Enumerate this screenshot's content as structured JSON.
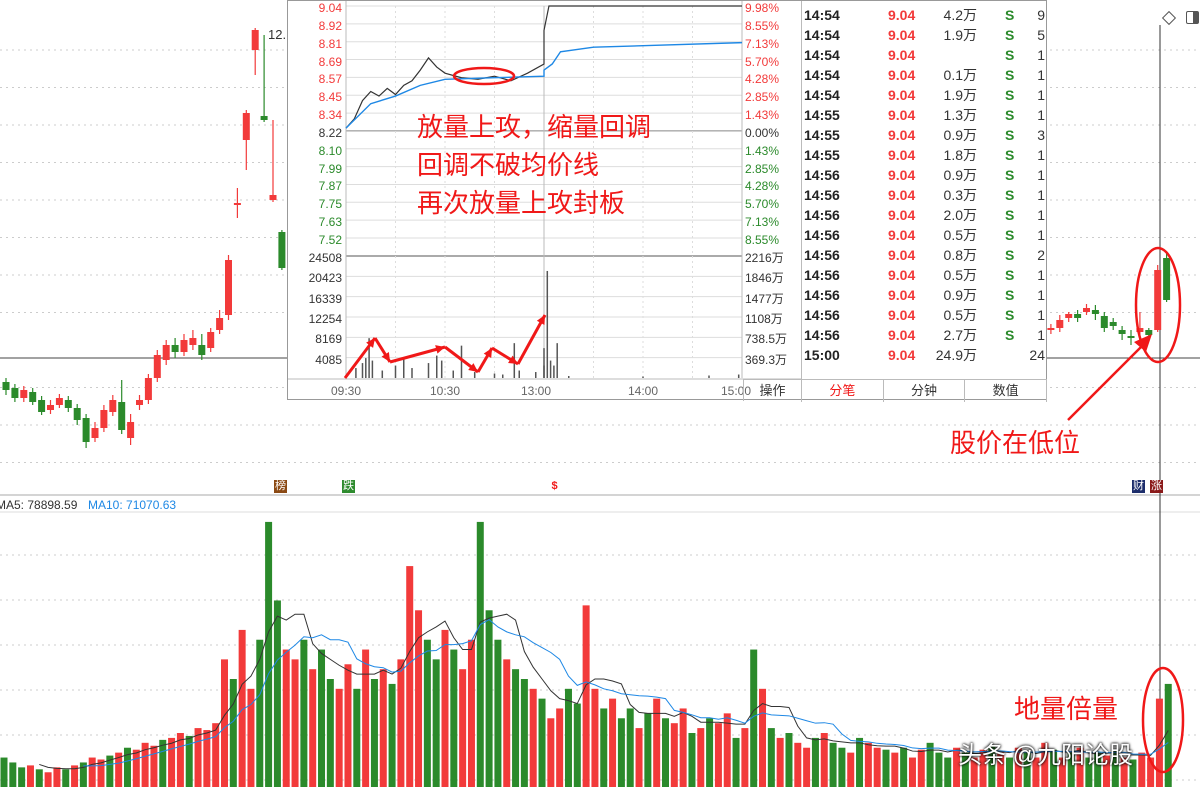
{
  "colors": {
    "up": "#f23a3a",
    "down": "#2b8a2b",
    "avg": "#1e88e5",
    "price": "#333333",
    "annotation": "#f01818"
  },
  "main_chart": {
    "top_label": "12.",
    "tags": [
      {
        "label": "榜",
        "color": "#8b4a14"
      },
      {
        "label": "跌",
        "color": "#2e8b2e"
      },
      {
        "label": "$",
        "color": "#f01818"
      },
      {
        "label": "财",
        "color": "#1c2d6b"
      },
      {
        "label": "涨",
        "color": "#8b1a1a"
      }
    ]
  },
  "volume_panel": {
    "ma5_label": "MA5: 78898.59",
    "ma10_label": "MA10: 71070.63"
  },
  "popup": {
    "price_labels": [
      "9.04",
      "8.92",
      "8.81",
      "8.69",
      "8.57",
      "8.45",
      "8.34",
      "8.22",
      "8.10",
      "7.99",
      "7.87",
      "7.75",
      "7.63",
      "7.52"
    ],
    "pct_labels": [
      "9.98%",
      "8.55%",
      "7.13%",
      "5.70%",
      "4.28%",
      "2.85%",
      "1.43%",
      "0.00%",
      "1.43%",
      "2.85%",
      "4.28%",
      "5.70%",
      "7.13%",
      "8.55%"
    ],
    "vol_labels": [
      "24508",
      "20423",
      "16339",
      "12254",
      "8169",
      "4085"
    ],
    "amt_labels": [
      "2216万",
      "1846万",
      "1477万",
      "1108万",
      "738.5万",
      "369.3万"
    ],
    "time_labels": [
      "09:30",
      "10:30",
      "13:00",
      "14:00",
      "15:00"
    ],
    "corner_label": "操作",
    "tabs": [
      "分笔",
      "分钟",
      "数值"
    ],
    "trades": [
      {
        "time": "14:54",
        "price": "9.04",
        "vol": "4.2万",
        "side": "S",
        "count": "9"
      },
      {
        "time": "14:54",
        "price": "9.04",
        "vol": "1.9万",
        "side": "S",
        "count": "5"
      },
      {
        "time": "14:54",
        "price": "9.04",
        "vol": "",
        "side": "S",
        "count": "1"
      },
      {
        "time": "14:54",
        "price": "9.04",
        "vol": "0.1万",
        "side": "S",
        "count": "1"
      },
      {
        "time": "14:54",
        "price": "9.04",
        "vol": "1.9万",
        "side": "S",
        "count": "1"
      },
      {
        "time": "14:55",
        "price": "9.04",
        "vol": "1.3万",
        "side": "S",
        "count": "1"
      },
      {
        "time": "14:55",
        "price": "9.04",
        "vol": "0.9万",
        "side": "S",
        "count": "3"
      },
      {
        "time": "14:55",
        "price": "9.04",
        "vol": "1.8万",
        "side": "S",
        "count": "1"
      },
      {
        "time": "14:56",
        "price": "9.04",
        "vol": "0.9万",
        "side": "S",
        "count": "1"
      },
      {
        "time": "14:56",
        "price": "9.04",
        "vol": "0.3万",
        "side": "S",
        "count": "1"
      },
      {
        "time": "14:56",
        "price": "9.04",
        "vol": "2.0万",
        "side": "S",
        "count": "1"
      },
      {
        "time": "14:56",
        "price": "9.04",
        "vol": "0.5万",
        "side": "S",
        "count": "1"
      },
      {
        "time": "14:56",
        "price": "9.04",
        "vol": "0.8万",
        "side": "S",
        "count": "2"
      },
      {
        "time": "14:56",
        "price": "9.04",
        "vol": "0.5万",
        "side": "S",
        "count": "1"
      },
      {
        "time": "14:56",
        "price": "9.04",
        "vol": "0.9万",
        "side": "S",
        "count": "1"
      },
      {
        "time": "14:56",
        "price": "9.04",
        "vol": "0.5万",
        "side": "S",
        "count": "1"
      },
      {
        "time": "14:56",
        "price": "9.04",
        "vol": "2.7万",
        "side": "S",
        "count": "1"
      },
      {
        "time": "15:00",
        "price": "9.04",
        "vol": "24.9万",
        "side": "",
        "count": "24"
      }
    ]
  },
  "annotations": {
    "line1": "放量上攻，缩量回调",
    "line2": "回调不破均价线",
    "line3": "再次放量上攻封板",
    "low_price": "股价在低位",
    "volume_note": "地量倍量",
    "watermark": "头条 @九阳论股"
  },
  "chart_data": [
    {
      "type": "candlestick",
      "segment": "left-visible",
      "fields": [
        "open",
        "close",
        "high",
        "low"
      ],
      "candles": [
        [
          9.18,
          9.1,
          9.22,
          9.05
        ],
        [
          9.12,
          9.02,
          9.16,
          8.98
        ],
        [
          9.02,
          9.1,
          9.14,
          8.98
        ],
        [
          9.08,
          8.98,
          9.12,
          8.95
        ],
        [
          9.0,
          8.88,
          9.04,
          8.85
        ],
        [
          8.9,
          8.95,
          9.0,
          8.86
        ],
        [
          8.95,
          9.02,
          9.06,
          8.92
        ],
        [
          9.0,
          8.92,
          9.04,
          8.88
        ],
        [
          8.92,
          8.8,
          8.96,
          8.75
        ],
        [
          8.82,
          8.58,
          8.86,
          8.52
        ],
        [
          8.62,
          8.72,
          8.78,
          8.58
        ],
        [
          8.72,
          8.9,
          8.95,
          8.68
        ],
        [
          8.88,
          9.0,
          9.05,
          8.84
        ],
        [
          8.98,
          8.7,
          9.2,
          8.66
        ],
        [
          8.62,
          8.78,
          8.86,
          8.55
        ],
        [
          8.95,
          9.0,
          9.05,
          8.9
        ],
        [
          9.0,
          9.22,
          9.26,
          8.96
        ],
        [
          9.22,
          9.45,
          9.5,
          9.18
        ],
        [
          9.4,
          9.55,
          9.6,
          9.35
        ],
        [
          9.55,
          9.48,
          9.62,
          9.42
        ],
        [
          9.48,
          9.6,
          9.66,
          9.44
        ],
        [
          9.55,
          9.62,
          9.7,
          9.5
        ],
        [
          9.55,
          9.45,
          9.66,
          9.4
        ],
        [
          9.52,
          9.68,
          9.72,
          9.48
        ],
        [
          9.7,
          9.82,
          9.9,
          9.66
        ],
        [
          9.85,
          10.4,
          10.45,
          9.8
        ],
        [
          10.95,
          10.97,
          11.12,
          10.82
        ],
        [
          11.6,
          11.87,
          11.9,
          11.3
        ],
        [
          12.5,
          12.7,
          12.72,
          12.25
        ],
        [
          11.84,
          11.8,
          12.65,
          11.78
        ],
        [
          11.0,
          11.05,
          11.8,
          10.98
        ],
        [
          10.68,
          10.32,
          10.7,
          10.3
        ]
      ]
    },
    {
      "type": "candlestick",
      "segment": "right-visible",
      "fields": [
        "open",
        "close",
        "high",
        "low"
      ],
      "candles": [
        [
          9.66,
          9.7,
          9.74,
          9.62
        ],
        [
          9.7,
          9.72,
          9.76,
          9.66
        ],
        [
          9.72,
          9.8,
          9.85,
          9.68
        ],
        [
          9.82,
          9.86,
          9.88,
          9.78
        ],
        [
          9.86,
          9.82,
          9.9,
          9.78
        ],
        [
          9.88,
          9.92,
          9.96,
          9.85
        ],
        [
          9.9,
          9.86,
          9.95,
          9.8
        ],
        [
          9.84,
          9.72,
          9.88,
          9.68
        ],
        [
          9.78,
          9.74,
          9.82,
          9.7
        ],
        [
          9.7,
          9.66,
          9.74,
          9.6
        ],
        [
          9.64,
          9.62,
          9.7,
          9.55
        ],
        [
          9.68,
          9.72,
          9.88,
          9.58
        ],
        [
          9.7,
          9.65,
          9.72,
          9.6
        ],
        [
          9.7,
          10.3,
          10.35,
          9.68
        ],
        [
          10.42,
          10.0,
          10.48,
          9.98
        ]
      ]
    },
    {
      "type": "bar",
      "name": "daily-volume",
      "ylim": [
        0,
        110000
      ],
      "values": [
        12000,
        10000,
        8000,
        8800,
        7200,
        6000,
        8000,
        7200,
        8800,
        10000,
        12000,
        11200,
        12800,
        14000,
        16000,
        15200,
        18000,
        16800,
        19200,
        20000,
        22000,
        20800,
        24000,
        23200,
        26000,
        52000,
        44000,
        64000,
        40000,
        60000,
        108000,
        76000,
        56000,
        52000,
        60000,
        48000,
        56000,
        44000,
        40000,
        50000,
        40000,
        56000,
        44000,
        48000,
        42000,
        52000,
        90000,
        72000,
        60000,
        52000,
        64000,
        56000,
        48000,
        60000,
        108000,
        72000,
        60000,
        52000,
        48000,
        44000,
        40000,
        36000,
        28000,
        32000,
        40000,
        34000,
        74000,
        40000,
        32000,
        36000,
        28000,
        32000,
        24000,
        30000,
        36000,
        28000,
        26000,
        32000,
        22000,
        24000,
        28000,
        26000,
        30000,
        20000,
        24000,
        56000,
        40000,
        24000,
        20000,
        22000,
        18000,
        16000,
        20000,
        22000,
        18000,
        16000,
        14000,
        20000,
        18000,
        16000,
        15200,
        14000,
        16000,
        12000,
        15200,
        18000,
        14000,
        12000,
        16000,
        14000,
        12000,
        15200,
        16800,
        14000,
        12000,
        16000,
        14000,
        12000,
        18000,
        15200,
        12000,
        14000,
        16000,
        12000,
        14000,
        12800,
        15200,
        12000,
        11200,
        14000,
        12000,
        36000,
        42000
      ],
      "up_down": "gggrgrrgrgrrgrgrrrgrrgrrrrgrrgggrrgrggrrgrgrgrrrggrgrrgggrggrgrrggrrgrggrgrgrrgrgrrgrgrgrgrrgrggrgrrgrgrrgggrgrrgrgrgrrgrgrggrgrgrrrg"
    },
    {
      "type": "line",
      "name": "intraday",
      "yticks": [
        9.04,
        7.52
      ],
      "price": [
        [
          "09:30",
          8.24
        ],
        [
          "09:35",
          8.3
        ],
        [
          "09:40",
          8.42
        ],
        [
          "09:45",
          8.48
        ],
        [
          "09:50",
          8.45
        ],
        [
          "09:55",
          8.5
        ],
        [
          "10:00",
          8.46
        ],
        [
          "10:05",
          8.52
        ],
        [
          "10:10",
          8.55
        ],
        [
          "10:15",
          8.62
        ],
        [
          "10:20",
          8.7
        ],
        [
          "10:25",
          8.64
        ],
        [
          "10:30",
          8.6
        ],
        [
          "10:40",
          8.57
        ],
        [
          "10:50",
          8.56
        ],
        [
          "11:00",
          8.58
        ],
        [
          "11:10",
          8.55
        ],
        [
          "11:20",
          8.6
        ],
        [
          "11:30",
          8.66
        ],
        [
          "13:00",
          8.88
        ],
        [
          "13:03",
          9.04
        ],
        [
          "15:00",
          9.04
        ]
      ],
      "avg": [
        [
          "09:30",
          8.24
        ],
        [
          "09:45",
          8.4
        ],
        [
          "10:00",
          8.45
        ],
        [
          "10:15",
          8.52
        ],
        [
          "10:30",
          8.56
        ],
        [
          "11:00",
          8.57
        ],
        [
          "11:30",
          8.58
        ],
        [
          "13:00",
          8.62
        ],
        [
          "13:05",
          8.66
        ],
        [
          "13:10",
          8.74
        ],
        [
          "13:30",
          8.77
        ],
        [
          "14:00",
          8.78
        ],
        [
          "15:00",
          8.8
        ]
      ],
      "volume": [
        [
          "09:36",
          2000
        ],
        [
          "09:40",
          3000
        ],
        [
          "09:42",
          4000
        ],
        [
          "09:44",
          8000
        ],
        [
          "09:46",
          3500
        ],
        [
          "09:52",
          1500
        ],
        [
          "10:00",
          2500
        ],
        [
          "10:05",
          4000
        ],
        [
          "10:10",
          2000
        ],
        [
          "10:20",
          3000
        ],
        [
          "10:25",
          4500
        ],
        [
          "10:28",
          3500
        ],
        [
          "10:35",
          1500
        ],
        [
          "10:40",
          6500
        ],
        [
          "10:48",
          1200
        ],
        [
          "11:00",
          900
        ],
        [
          "11:05",
          700
        ],
        [
          "11:12",
          7000
        ],
        [
          "11:15",
          1500
        ],
        [
          "11:25",
          1200
        ],
        [
          "11:30",
          2500
        ],
        [
          "13:00",
          6000
        ],
        [
          "13:02",
          21500
        ],
        [
          "13:04",
          3500
        ],
        [
          "13:06",
          2500
        ],
        [
          "13:08",
          7000
        ],
        [
          "13:15",
          400
        ],
        [
          "14:00",
          300
        ],
        [
          "14:40",
          500
        ],
        [
          "14:58",
          700
        ]
      ]
    }
  ]
}
